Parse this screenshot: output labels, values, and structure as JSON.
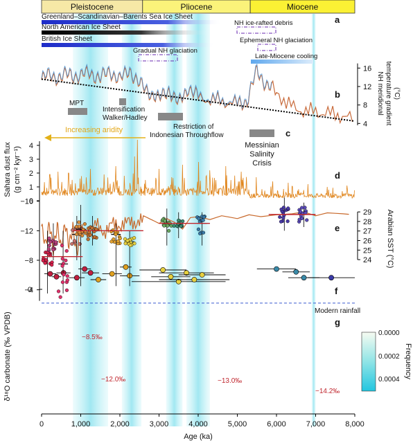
{
  "epochs": [
    {
      "name": "Pleistocene",
      "start_ka": 0,
      "end_ka": 2580,
      "color": "#f6e8a6"
    },
    {
      "name": "Pliocene",
      "start_ka": 2580,
      "end_ka": 5330,
      "color": "#fbf37a"
    },
    {
      "name": "Miocene",
      "start_ka": 5330,
      "end_ka": 8000,
      "color": "#fbf134"
    }
  ],
  "panel_letters": [
    "a",
    "b",
    "c",
    "d",
    "e",
    "f",
    "g"
  ],
  "ice_sheets": [
    {
      "label": "Greenland–Scandinavian–Barents Sea Ice Sheet",
      "start_ka": 0,
      "end_ka": 2600,
      "color": "#2a3fd6"
    },
    {
      "label": "North American Ice Sheet",
      "start_ka": 0,
      "end_ka": 2600,
      "color": "#1a1a1a"
    },
    {
      "label": "British Ice Sheet",
      "start_ka": 0,
      "end_ka": 2600,
      "color": "#2c3bd8"
    }
  ],
  "annotations": {
    "nh_debris": "NH ice-rafted debris",
    "ephemeral": "Ephemeral NH glaciation",
    "gradual": "Gradual NH glaciation",
    "late_miocene": "Late-Miocene cooling",
    "mpt": "MPT",
    "intensification_1": "Intensification",
    "intensification_2": "Walker/Hadley",
    "restriction_1": "Restriction of",
    "restriction_2": "Indonesian Throughflow",
    "messinian_1": "Messinian",
    "messinian_2": "Salinity",
    "messinian_3": "Crisis",
    "aridity": "Increasing aridity",
    "modern_rainfall": "Modern rainfall",
    "g_values": [
      "−8.5‰",
      "−12.0‰",
      "−13.0‰",
      "−14.2‰"
    ]
  },
  "axes": {
    "x_label": "Age (ka)",
    "x_ticks": [
      "0",
      "1,000",
      "2,000",
      "3,000",
      "4,000",
      "5,000",
      "6,000",
      "7,000",
      "8,000"
    ],
    "gradient_label_1": "NH meridional",
    "gradient_label_2": "temperature gradient",
    "gradient_label_3": "(°C)",
    "gradient_ticks": [
      "16",
      "12",
      "8",
      "4"
    ],
    "dust_label_1": "Sahara dust flux",
    "dust_label_2": "(g cm⁻² kyr⁻¹)",
    "dust_ticks": [
      "4",
      "3",
      "2",
      "1",
      "0"
    ],
    "sst_label": "Arabian SST (°C)",
    "sst_ticks": [
      "29",
      "28",
      "27",
      "26",
      "25",
      "24"
    ],
    "f_ticks": [
      "0"
    ],
    "d18o_label": "δ¹⁸O carbonate (‰ VPDB)",
    "d18o_ticks": [
      "−4",
      "−8",
      "−12",
      "−16"
    ],
    "freq_label": "Frequency",
    "freq_ticks": [
      "0.0000",
      "0.0002",
      "0.0004"
    ]
  },
  "chart_data": [
    {
      "panel": "b",
      "type": "line",
      "ylabel": "NH meridional temperature gradient (°C)",
      "ylim": [
        3,
        18
      ],
      "x": [
        0,
        250,
        500,
        750,
        1000,
        1250,
        1500,
        1750,
        2000,
        2250,
        2500,
        2750,
        3000,
        3250,
        3500,
        3750,
        4000,
        4500,
        5000,
        5250,
        5500,
        5750,
        6000,
        6500,
        7000,
        7500,
        8000
      ],
      "values": [
        13.5,
        14.5,
        13.8,
        14.8,
        14,
        15.2,
        13.5,
        15.5,
        13.2,
        15.8,
        12.2,
        11,
        9,
        11.5,
        8,
        12,
        9.5,
        9,
        8.2,
        9,
        15.2,
        12.5,
        10.5,
        7,
        6.5,
        6,
        4.8
      ],
      "trend_start": 13.6,
      "trend_end": 4.5
    },
    {
      "panel": "d",
      "type": "line",
      "ylabel": "Sahara dust flux (g cm⁻² kyr⁻¹)",
      "ylim": [
        0,
        4.5
      ],
      "x_range": [
        0,
        8000
      ],
      "baseline": 0.35,
      "peaks": [
        [
          210,
          1.9
        ],
        [
          420,
          2.1
        ],
        [
          690,
          2.0
        ],
        [
          980,
          1.6
        ],
        [
          1250,
          2.3
        ],
        [
          1600,
          1.9
        ],
        [
          1900,
          2.5
        ],
        [
          2110,
          1.8
        ],
        [
          2380,
          3.2
        ],
        [
          2450,
          4.4
        ],
        [
          2650,
          1.5
        ],
        [
          3000,
          2.3
        ],
        [
          3320,
          1.7
        ],
        [
          3600,
          2.6
        ],
        [
          4010,
          2.8
        ],
        [
          4300,
          2.2
        ],
        [
          4700,
          2.5
        ],
        [
          5100,
          2.1
        ],
        [
          5480,
          1.7
        ],
        [
          5900,
          1.4
        ],
        [
          6300,
          1.3
        ],
        [
          6800,
          1.2
        ],
        [
          7300,
          1.0
        ],
        [
          7800,
          1.1
        ]
      ]
    },
    {
      "panel": "e",
      "type": "line",
      "ylabel": "Arabian SST (°C)",
      "ylim": [
        23.5,
        29.3
      ],
      "x": [
        0,
        100,
        200,
        300,
        400,
        500,
        600,
        700,
        800,
        900,
        1000,
        1200,
        1400,
        1600,
        1800,
        2000,
        2200,
        2400,
        2600,
        2800,
        3000,
        3200,
        3400,
        3600,
        3800,
        4000,
        4300,
        4600,
        5000,
        5300,
        5600,
        6000,
        6400,
        6700,
        7000,
        7300,
        7700,
        8000
      ],
      "values": [
        27.5,
        25.5,
        27.8,
        25,
        27.6,
        25.2,
        27.8,
        25.5,
        27.4,
        24.5,
        27.3,
        26.7,
        28,
        26.5,
        28.1,
        27.2,
        28.3,
        27.5,
        28.6,
        28.2,
        27.8,
        28.3,
        27.9,
        27.2,
        28.4,
        28.5,
        28.2,
        28.6,
        28.3,
        28.7,
        28.5,
        28.7,
        28.8,
        29.0,
        28.6,
        28.9,
        28.8,
        28.7
      ]
    },
    {
      "panel": "f",
      "type": "scatter",
      "points": [
        {
          "x": 220,
          "y": 1.6,
          "xerr": 150
        },
        {
          "x": 380,
          "y": 1.3,
          "xerr": 120
        },
        {
          "x": 560,
          "y": 1.7,
          "xerr": 180
        },
        {
          "x": 900,
          "y": 1.2,
          "xerr": 200
        },
        {
          "x": 1100,
          "y": 2.1,
          "xerr": 160
        },
        {
          "x": 1250,
          "y": 1.7,
          "xerr": 220
        },
        {
          "x": 1450,
          "y": 1.0,
          "xerr": 200
        },
        {
          "x": 1800,
          "y": 1.6,
          "xerr": 250
        },
        {
          "x": 2150,
          "y": 2.3,
          "xerr": 150
        },
        {
          "x": 2250,
          "y": 1.4,
          "xerr": 250
        },
        {
          "x": 3100,
          "y": 2.0,
          "xerr": 600
        },
        {
          "x": 3300,
          "y": 1.3,
          "xerr": 500
        },
        {
          "x": 3500,
          "y": 0.8,
          "xerr": 1200
        },
        {
          "x": 3700,
          "y": 1.7,
          "xerr": 700
        },
        {
          "x": 3900,
          "y": 1.0,
          "xerr": 900
        },
        {
          "x": 4100,
          "y": 1.5,
          "xerr": 600
        },
        {
          "x": 6000,
          "y": 2.1,
          "xerr": 500
        },
        {
          "x": 6500,
          "y": 1.8,
          "xerr": 350
        },
        {
          "x": 6700,
          "y": 1.2,
          "xerr": 400
        },
        {
          "x": 7400,
          "y": 1.2,
          "xerr": 600
        }
      ]
    },
    {
      "panel": "g",
      "type": "box",
      "ylabel": "δ¹⁸O carbonate (‰ VPDB)",
      "ylim": [
        -17,
        -2
      ],
      "boxes": [
        {
          "x": 150,
          "q1": -9.0,
          "median": -8.5,
          "q3": -7.5,
          "lo": -12,
          "hi": -3.5,
          "color": "#d4204a"
        },
        {
          "x": 300,
          "q1": -11,
          "median": -10.5,
          "q3": -9.5,
          "lo": -13,
          "hi": -8,
          "color": "#b8407a"
        },
        {
          "x": 550,
          "q1": -10,
          "median": -7.5,
          "q3": -4.5,
          "lo": -12,
          "hi": -3.5,
          "color": "#e0306a"
        },
        {
          "x": 900,
          "q1": -12.5,
          "median": -11.5,
          "q3": -10.5,
          "lo": -14,
          "hi": -8,
          "color": "#c8706a"
        },
        {
          "x": 1000,
          "q1": -13,
          "median": -12.2,
          "q3": -11.5,
          "lo": -15.5,
          "hi": -4.5,
          "color": "#d98c3a"
        },
        {
          "x": 1300,
          "q1": -12.5,
          "median": -12,
          "q3": -11,
          "lo": -14,
          "hi": -10,
          "color": "#c07030"
        },
        {
          "x": 1900,
          "q1": -12,
          "median": -11.5,
          "q3": -10.5,
          "lo": -13,
          "hi": -4.5,
          "color": "#e0a030"
        },
        {
          "x": 2250,
          "q1": -11,
          "median": -10.5,
          "q3": -10,
          "lo": -12,
          "hi": -4.5,
          "color": "#e6d040"
        },
        {
          "x": 3200,
          "q1": -13.5,
          "median": -12.8,
          "q3": -12,
          "lo": -15,
          "hi": -10,
          "color": "#6aa860"
        },
        {
          "x": 3500,
          "q1": -13.3,
          "median": -13,
          "q3": -12.5,
          "lo": -14.5,
          "hi": -11,
          "color": "#3a8a70"
        },
        {
          "x": 4100,
          "q1": -13.8,
          "median": -13,
          "q3": -12,
          "lo": -14.5,
          "hi": -10,
          "color": "#3a7aa8"
        },
        {
          "x": 6200,
          "q1": -15,
          "median": -14.2,
          "q3": -13.5,
          "lo": -16.5,
          "hi": -12,
          "color": "#4a3aa8"
        },
        {
          "x": 6700,
          "q1": -15,
          "median": -14.2,
          "q3": -13.5,
          "lo": -15.8,
          "hi": -12.5,
          "color": "#5a4ab8"
        }
      ],
      "mean_lines": [
        {
          "x1": 0,
          "x2": 1050,
          "y": -8.5
        },
        {
          "x1": 800,
          "x2": 2600,
          "y": -12
        },
        {
          "x1": 3000,
          "x2": 4300,
          "y": -13
        },
        {
          "x1": 5800,
          "x2": 7000,
          "y": -14.2
        }
      ],
      "modern_rainfall": -2.2
    }
  ]
}
